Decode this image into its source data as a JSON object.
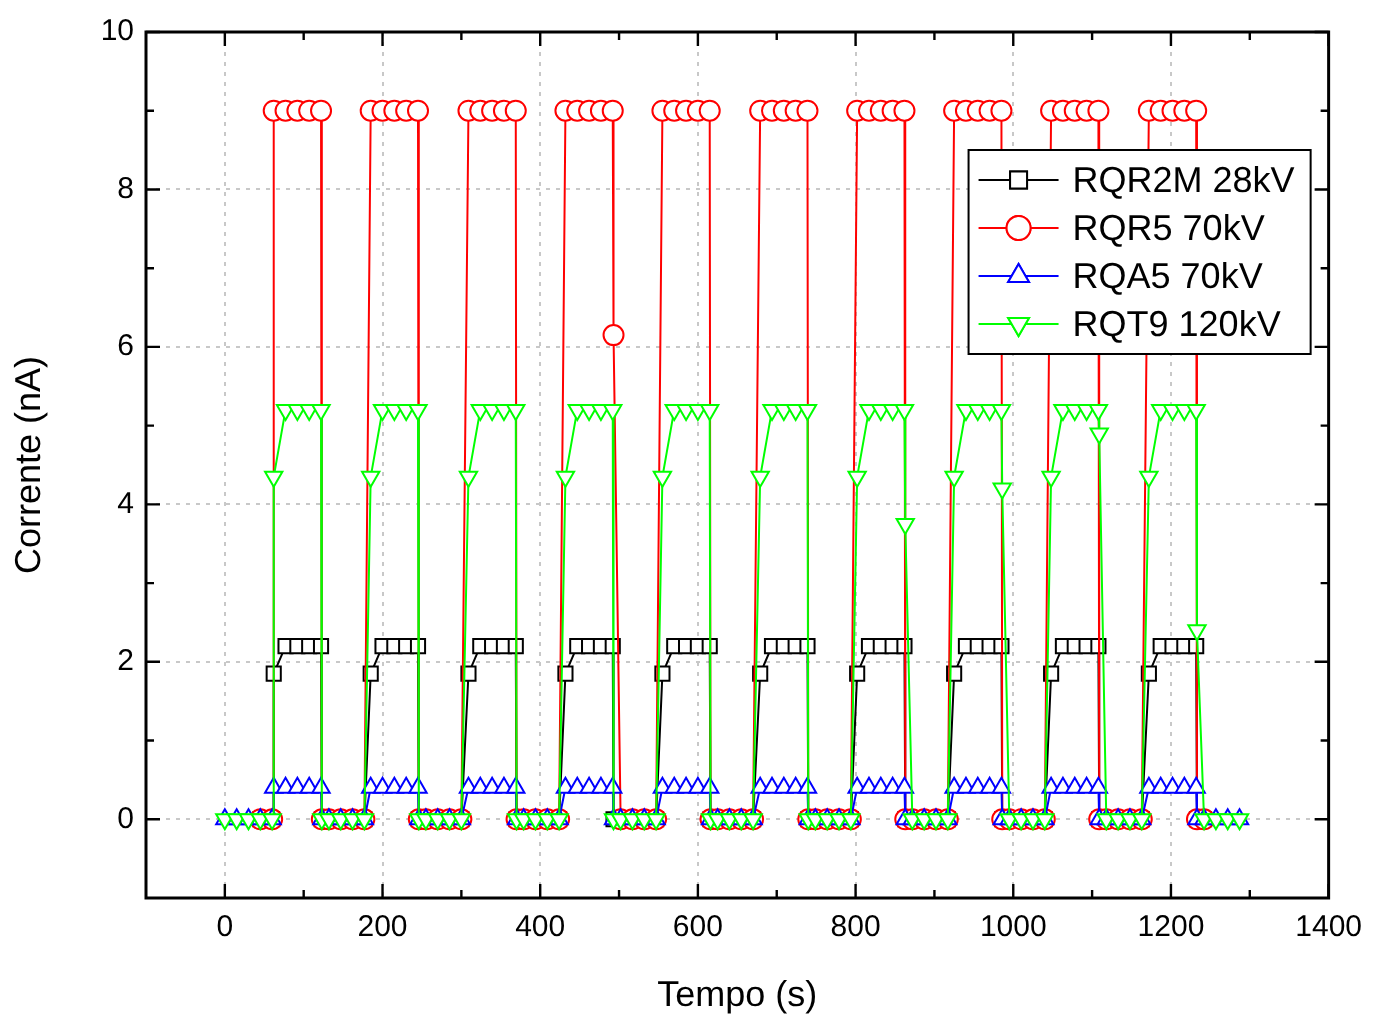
{
  "chart_data": {
    "type": "line",
    "xlabel": "Tempo (s)",
    "ylabel": "Corrente (nA)",
    "xlim": [
      -100,
      1400
    ],
    "xticks": [
      0,
      200,
      400,
      600,
      800,
      1000,
      1200,
      1400
    ],
    "ylim": [
      -1,
      10
    ],
    "yticks": [
      0,
      2,
      4,
      6,
      8,
      10
    ],
    "grid": true,
    "legend": "top right",
    "line_style": "solid",
    "x": [
      0,
      15,
      30,
      45,
      60,
      62,
      77,
      92,
      107,
      122,
      123,
      132,
      147,
      162,
      177,
      185,
      200,
      215,
      230,
      245,
      246,
      255,
      270,
      285,
      300,
      309,
      324,
      339,
      354,
      369,
      370,
      379,
      394,
      409,
      424,
      432,
      447,
      462,
      477,
      492,
      493,
      502,
      517,
      532,
      547,
      555,
      570,
      585,
      600,
      615,
      616,
      625,
      640,
      655,
      670,
      679,
      694,
      709,
      724,
      739,
      740,
      749,
      764,
      779,
      794,
      802,
      817,
      832,
      847,
      862,
      863,
      872,
      887,
      902,
      917,
      925,
      940,
      955,
      970,
      985,
      986,
      995,
      1010,
      1025,
      1040,
      1048,
      1063,
      1078,
      1093,
      1108,
      1109,
      1118,
      1133,
      1148,
      1163,
      1172,
      1187,
      1202,
      1217,
      1232,
      1233,
      1242,
      1257,
      1272,
      1287
    ],
    "series": [
      {
        "name": "RQR2M 28kV",
        "color": "#000000",
        "marker": "square",
        "values": [
          null,
          null,
          null,
          0,
          0,
          1.85,
          2.2,
          2.2,
          2.2,
          2.2,
          0,
          0,
          0,
          0,
          0,
          1.85,
          2.2,
          2.2,
          2.2,
          2.2,
          0,
          0,
          0,
          0,
          0,
          1.85,
          2.2,
          2.2,
          2.2,
          2.2,
          0,
          0,
          0,
          0,
          0,
          1.85,
          2.2,
          2.2,
          2.2,
          2.2,
          0,
          0,
          0,
          0,
          0,
          1.85,
          2.2,
          2.2,
          2.2,
          2.2,
          0,
          0,
          0,
          0,
          0,
          1.85,
          2.2,
          2.2,
          2.2,
          2.2,
          0,
          0,
          0,
          0,
          0,
          1.85,
          2.2,
          2.2,
          2.2,
          2.2,
          0,
          0,
          0,
          0,
          0,
          1.85,
          2.2,
          2.2,
          2.2,
          2.2,
          0,
          0,
          0,
          0,
          0,
          1.85,
          2.2,
          2.2,
          2.2,
          2.2,
          0,
          0,
          0,
          0,
          0,
          1.85,
          2.2,
          2.2,
          2.2,
          2.2,
          0,
          0,
          null,
          null,
          null
        ]
      },
      {
        "name": "RQR5 70kV",
        "color": "#ff0000",
        "marker": "circle",
        "values": [
          null,
          null,
          null,
          0,
          0,
          9,
          9,
          9,
          9,
          9,
          0,
          0,
          0,
          0,
          0,
          9,
          9,
          9,
          9,
          9,
          0,
          0,
          0,
          0,
          0,
          9,
          9,
          9,
          9,
          9,
          0,
          0,
          0,
          0,
          0,
          9,
          9,
          9,
          9,
          9,
          6.15,
          0,
          0,
          0,
          0,
          9,
          9,
          9,
          9,
          9,
          0,
          0,
          0,
          0,
          0,
          9,
          9,
          9,
          9,
          9,
          0,
          0,
          0,
          0,
          0,
          9,
          9,
          9,
          9,
          9,
          0,
          0,
          0,
          0,
          0,
          9,
          9,
          9,
          9,
          9,
          0,
          0,
          0,
          0,
          0,
          9,
          9,
          9,
          9,
          9,
          0,
          0,
          0,
          0,
          0,
          9,
          9,
          9,
          9,
          9,
          0,
          0,
          null,
          null,
          null
        ]
      },
      {
        "name": "RQA5 70kV",
        "color": "#0000ff",
        "marker": "triangle",
        "values": [
          0,
          0,
          0,
          0,
          0,
          0.4,
          0.4,
          0.4,
          0.4,
          0.4,
          0,
          0,
          0,
          0,
          0,
          0.4,
          0.4,
          0.4,
          0.4,
          0.4,
          0,
          0,
          0,
          0,
          0,
          0.4,
          0.4,
          0.4,
          0.4,
          0.4,
          0,
          0,
          0,
          0,
          0,
          0.4,
          0.4,
          0.4,
          0.4,
          0.4,
          0,
          0,
          0,
          0,
          0,
          0.4,
          0.4,
          0.4,
          0.4,
          0.4,
          0,
          0,
          0,
          0,
          0,
          0.4,
          0.4,
          0.4,
          0.4,
          0.4,
          0,
          0,
          0,
          0,
          0,
          0.4,
          0.4,
          0.4,
          0.4,
          0.4,
          0,
          0,
          0,
          0,
          0,
          0.4,
          0.4,
          0.4,
          0.4,
          0.4,
          0,
          0,
          0,
          0,
          0,
          0.4,
          0.4,
          0.4,
          0.4,
          0.4,
          0,
          0,
          0,
          0,
          0,
          0.4,
          0.4,
          0.4,
          0.4,
          0.4,
          0,
          0,
          0,
          0,
          0
        ]
      },
      {
        "name": "RQT9 120kV",
        "color": "#00ff00",
        "marker": "triangle",
        "values": [
          0,
          0,
          0,
          0,
          0,
          4.35,
          5.2,
          5.2,
          5.2,
          5.2,
          0,
          0,
          0,
          0,
          0,
          4.35,
          5.2,
          5.2,
          5.2,
          5.2,
          0,
          0,
          0,
          0,
          0,
          4.35,
          5.2,
          5.2,
          5.2,
          5.2,
          0,
          0,
          0,
          0,
          0,
          4.35,
          5.2,
          5.2,
          5.2,
          5.2,
          0,
          0,
          0,
          0,
          0,
          4.35,
          5.2,
          5.2,
          5.2,
          5.2,
          0,
          0,
          0,
          0,
          0,
          4.35,
          5.2,
          5.2,
          5.2,
          5.2,
          0,
          0,
          0,
          0,
          0,
          4.35,
          5.2,
          5.2,
          5.2,
          5.2,
          3.75,
          0,
          0,
          0,
          0,
          4.35,
          5.2,
          5.2,
          5.2,
          5.2,
          4.2,
          0,
          0,
          0,
          0,
          4.35,
          5.2,
          5.2,
          5.2,
          5.2,
          4.9,
          0,
          0,
          0,
          0,
          4.35,
          5.2,
          5.2,
          5.2,
          5.2,
          2.4,
          0,
          0,
          0,
          0
        ]
      }
    ]
  }
}
